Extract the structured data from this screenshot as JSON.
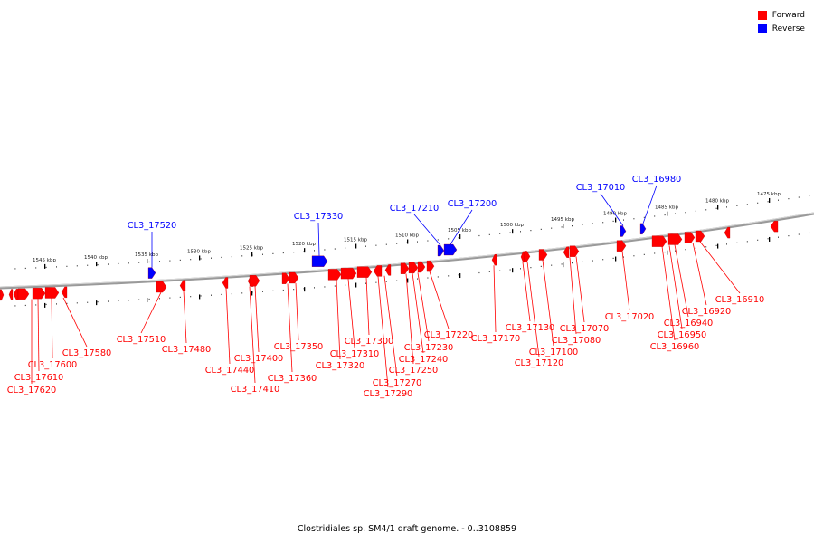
{
  "legend": {
    "forward_label": "Forward",
    "reverse_label": "Reverse"
  },
  "colors": {
    "forward": "#ff0000",
    "reverse": "#0000ff",
    "backbone": "#808080",
    "tick": "#000000"
  },
  "footer": "Clostridiales sp. SM4/1 draft genome. - 0..3108859",
  "scale": {
    "labels": [
      "1545 kbp",
      "1540 kbp",
      "1535 kbp",
      "1530 kbp",
      "1525 kbp",
      "1520 kbp",
      "1515 kbp",
      "1510 kbp",
      "1505 kbp",
      "1500 kbp",
      "1495 kbp",
      "1490 kbp",
      "1485 kbp",
      "1480 kbp",
      "1475 kbp"
    ]
  },
  "forward_genes": [
    "CL3_17620",
    "CL3_17610",
    "CL3_17600",
    "CL3_17580",
    "CL3_17510",
    "CL3_17480",
    "CL3_17440",
    "CL3_17410",
    "CL3_17400",
    "CL3_17360",
    "CL3_17350",
    "CL3_17320",
    "CL3_17310",
    "CL3_17300",
    "CL3_17290",
    "CL3_17270",
    "CL3_17250",
    "CL3_17240",
    "CL3_17230",
    "CL3_17220",
    "CL3_17170",
    "CL3_17130",
    "CL3_17120",
    "CL3_17100",
    "CL3_17080",
    "CL3_17070",
    "CL3_17020",
    "CL3_16960",
    "CL3_16950",
    "CL3_16940",
    "CL3_16920",
    "CL3_16910"
  ],
  "reverse_genes": [
    "CL3_17520",
    "CL3_17330",
    "CL3_17210",
    "CL3_17200",
    "CL3_17010",
    "CL3_16980"
  ]
}
